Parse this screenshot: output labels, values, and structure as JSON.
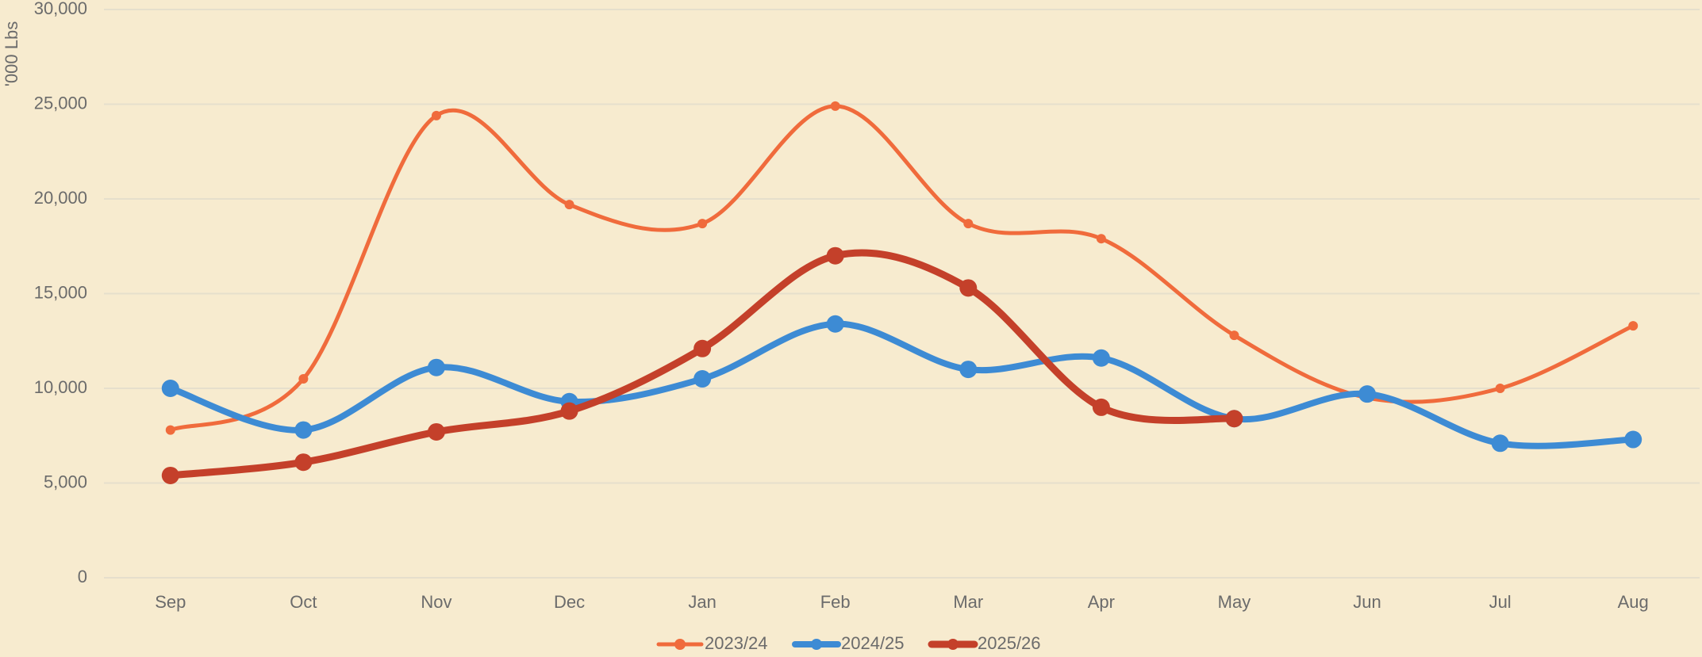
{
  "chart_data": {
    "type": "line",
    "y_label": "'000 Lbs",
    "categories": [
      "Sep",
      "Oct",
      "Nov",
      "Dec",
      "Jan",
      "Feb",
      "Mar",
      "Apr",
      "May",
      "Jun",
      "Jul",
      "Aug"
    ],
    "series": [
      {
        "name": "2023/24",
        "color": "#f06b3c",
        "values": [
          7800,
          10500,
          24400,
          19700,
          18700,
          24900,
          18700,
          17900,
          12800,
          9500,
          10000,
          13300
        ]
      },
      {
        "name": "2024/25",
        "color": "#3d8bd4",
        "values": [
          10000,
          7800,
          11100,
          9300,
          10500,
          13400,
          11000,
          11600,
          8400,
          9700,
          7100,
          7300
        ]
      },
      {
        "name": "2025/26",
        "color": "#c4402a",
        "values": [
          5400,
          6100,
          7700,
          8800,
          12100,
          17000,
          15300,
          9000,
          8400,
          null,
          null,
          null
        ]
      }
    ],
    "ylim": [
      0,
      30000
    ],
    "yticks": [
      0,
      {
        "value": 5000,
        "label": "5,000"
      },
      {
        "value": 10000,
        "label": "10,000"
      },
      {
        "value": 15000,
        "label": "15,000"
      },
      {
        "value": 20000,
        "label": "20,000"
      },
      {
        "value": 25000,
        "label": "25,000"
      },
      {
        "value": 30000,
        "label": "30,000"
      }
    ],
    "grid": true,
    "legend": "bottom",
    "smooth": true
  }
}
